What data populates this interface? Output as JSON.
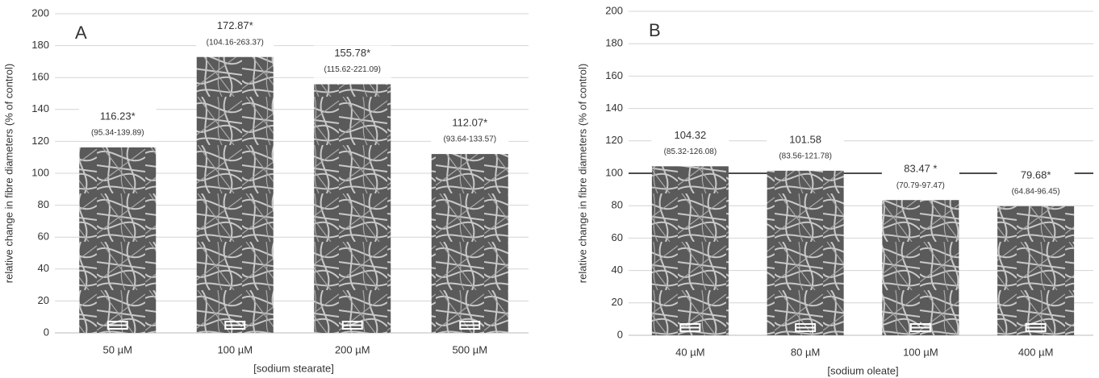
{
  "chart_data": [
    {
      "type": "bar",
      "title": "A",
      "categories": [
        "50 µM",
        "100 µM",
        "200 µM",
        "500 µM"
      ],
      "values": [
        116.23,
        172.87,
        155.78,
        112.07
      ],
      "value_labels": [
        "116.23*",
        "172.87*",
        "155.78*",
        "112.07*"
      ],
      "interval_labels": [
        "(95.34-139.89)",
        "(104.16-263.37)",
        "(115.62-221.09)",
        "(93.64-133.57)"
      ],
      "x_label": "[sodium stearate]",
      "y_label": "relative change in fibre diameters  (% of control)",
      "ylim": [
        0,
        200
      ],
      "yticks": [
        0,
        20,
        40,
        60,
        80,
        100,
        120,
        140,
        160,
        180,
        200
      ],
      "grid": true
    },
    {
      "type": "bar",
      "title": "B",
      "categories": [
        "40 µM",
        "80 µM",
        "100 µM",
        "400 µM"
      ],
      "values": [
        104.32,
        101.58,
        83.47,
        79.68
      ],
      "value_labels": [
        "104.32",
        "101.58",
        "83.47 *",
        "79.68*"
      ],
      "interval_labels": [
        "(85.32-126.08)",
        "(83.56-121.78)",
        "(70.79-97.47)",
        "(64.84-96.45)"
      ],
      "x_label": "[sodium oleate]",
      "y_label": "relative change in fibre diameters  (% of control)",
      "ylim": [
        0,
        200
      ],
      "yticks": [
        0,
        20,
        40,
        60,
        80,
        100,
        120,
        140,
        160,
        180,
        200
      ],
      "grid": true,
      "reference_line": 100
    }
  ]
}
